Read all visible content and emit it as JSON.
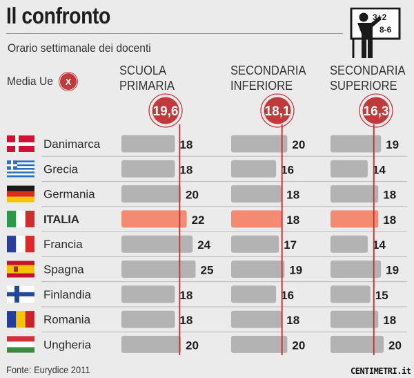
{
  "title": "Il confronto",
  "subtitle": "Orario settimanale dei docenti",
  "legend": {
    "media_label": "Media Ue",
    "media_marker": "X"
  },
  "footer": {
    "source": "Fonte: Eurydice 2011",
    "brand": "CENTIMETRI.it"
  },
  "icons": [
    "teacher-at-blackboard-icon"
  ],
  "blackboard_text": [
    "3+2",
    "8-6"
  ],
  "colors": {
    "bar": "#b3b3b3",
    "bar_highlight": "#f28b72",
    "average_line": "#c0393b",
    "background": "#ebebeb"
  },
  "chart_data": {
    "type": "bar",
    "orientation": "horizontal",
    "title": "Il confronto",
    "subtitle": "Orario settimanale dei docenti",
    "categories": [
      "Danimarca",
      "Grecia",
      "Germania",
      "ITALIA",
      "Francia",
      "Spagna",
      "Finlandia",
      "Romania",
      "Ungheria"
    ],
    "highlight_category": "ITALIA",
    "series": [
      {
        "name": "SCUOLA\nPRIMARIA",
        "average": 19.6,
        "average_label": "19,6",
        "values": [
          18,
          18,
          20,
          22,
          24,
          25,
          18,
          18,
          20
        ]
      },
      {
        "name": "SECONDARIA\nINFERIORE",
        "average": 18.1,
        "average_label": "18,1",
        "values": [
          20,
          16,
          18,
          18,
          17,
          19,
          16,
          18,
          20
        ]
      },
      {
        "name": "SECONDARIA\nSUPERIORE",
        "average": 16.3,
        "average_label": "16,3",
        "values": [
          19,
          14,
          18,
          18,
          14,
          19,
          15,
          18,
          20
        ]
      }
    ]
  }
}
